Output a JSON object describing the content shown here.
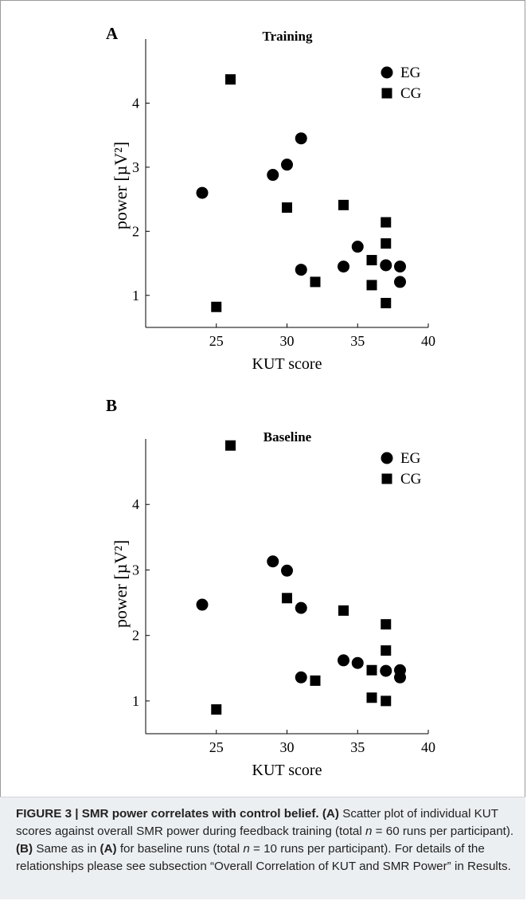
{
  "chart_data": [
    {
      "type": "scatter",
      "panel_label": "A",
      "title": "Training",
      "xlabel": "KUT score",
      "ylabel": "power [µV²]",
      "xlim": [
        20,
        40
      ],
      "ylim": [
        0.5,
        5.0
      ],
      "xticks": [
        "25",
        "30",
        "35",
        "40"
      ],
      "yticks": [
        "1",
        "2",
        "3",
        "4"
      ],
      "legend_position": "top-right",
      "series": [
        {
          "name": "EG",
          "marker": "circle",
          "points": [
            [
              24,
              2.6
            ],
            [
              29,
              2.88
            ],
            [
              30,
              3.04
            ],
            [
              31,
              3.45
            ],
            [
              31,
              1.4
            ],
            [
              34,
              1.45
            ],
            [
              35,
              1.76
            ],
            [
              37,
              1.47
            ],
            [
              38,
              1.45
            ],
            [
              38,
              1.21
            ]
          ]
        },
        {
          "name": "CG",
          "marker": "square",
          "points": [
            [
              26,
              4.37
            ],
            [
              25,
              0.82
            ],
            [
              30,
              2.37
            ],
            [
              32,
              1.21
            ],
            [
              34,
              2.41
            ],
            [
              36,
              1.55
            ],
            [
              36,
              1.16
            ],
            [
              37,
              2.14
            ],
            [
              37,
              1.81
            ],
            [
              37,
              0.88
            ]
          ]
        }
      ]
    },
    {
      "type": "scatter",
      "panel_label": "B",
      "title": "Baseline",
      "xlabel": "KUT score",
      "ylabel": "power [µV²]",
      "xlim": [
        20,
        40
      ],
      "ylim": [
        0.5,
        5.0
      ],
      "xticks": [
        "25",
        "30",
        "35",
        "40"
      ],
      "yticks": [
        "1",
        "2",
        "3",
        "4"
      ],
      "legend_position": "top-right",
      "series": [
        {
          "name": "EG",
          "marker": "circle",
          "points": [
            [
              24,
              2.47
            ],
            [
              29,
              3.13
            ],
            [
              30,
              2.99
            ],
            [
              31,
              2.42
            ],
            [
              31,
              1.36
            ],
            [
              34,
              1.62
            ],
            [
              35,
              1.58
            ],
            [
              37,
              1.46
            ],
            [
              38,
              1.47
            ],
            [
              38,
              1.36
            ]
          ]
        },
        {
          "name": "CG",
          "marker": "square",
          "points": [
            [
              26,
              4.9
            ],
            [
              25,
              0.87
            ],
            [
              30,
              2.57
            ],
            [
              32,
              1.31
            ],
            [
              34,
              2.38
            ],
            [
              36,
              1.47
            ],
            [
              36,
              1.05
            ],
            [
              37,
              2.17
            ],
            [
              37,
              1.77
            ],
            [
              37,
              1.0
            ]
          ]
        }
      ]
    }
  ],
  "caption": {
    "lead": "FIGURE 3 | SMR power correlates with control belief.",
    "a_tag": "(A)",
    "a_text": " Scatter plot of individual KUT scores against overall SMR power during feedback training (total ",
    "n_var": "n",
    "a_n": " = 60 runs per participant). ",
    "b_tag": "(B)",
    "b_text1": " Same as in ",
    "b_ref": "(A)",
    "b_text2": " for baseline runs (total ",
    "b_n": " = 10 runs per participant). For details of the relationships please see subsection “Overall Correlation of KUT and SMR Power” in Results."
  }
}
